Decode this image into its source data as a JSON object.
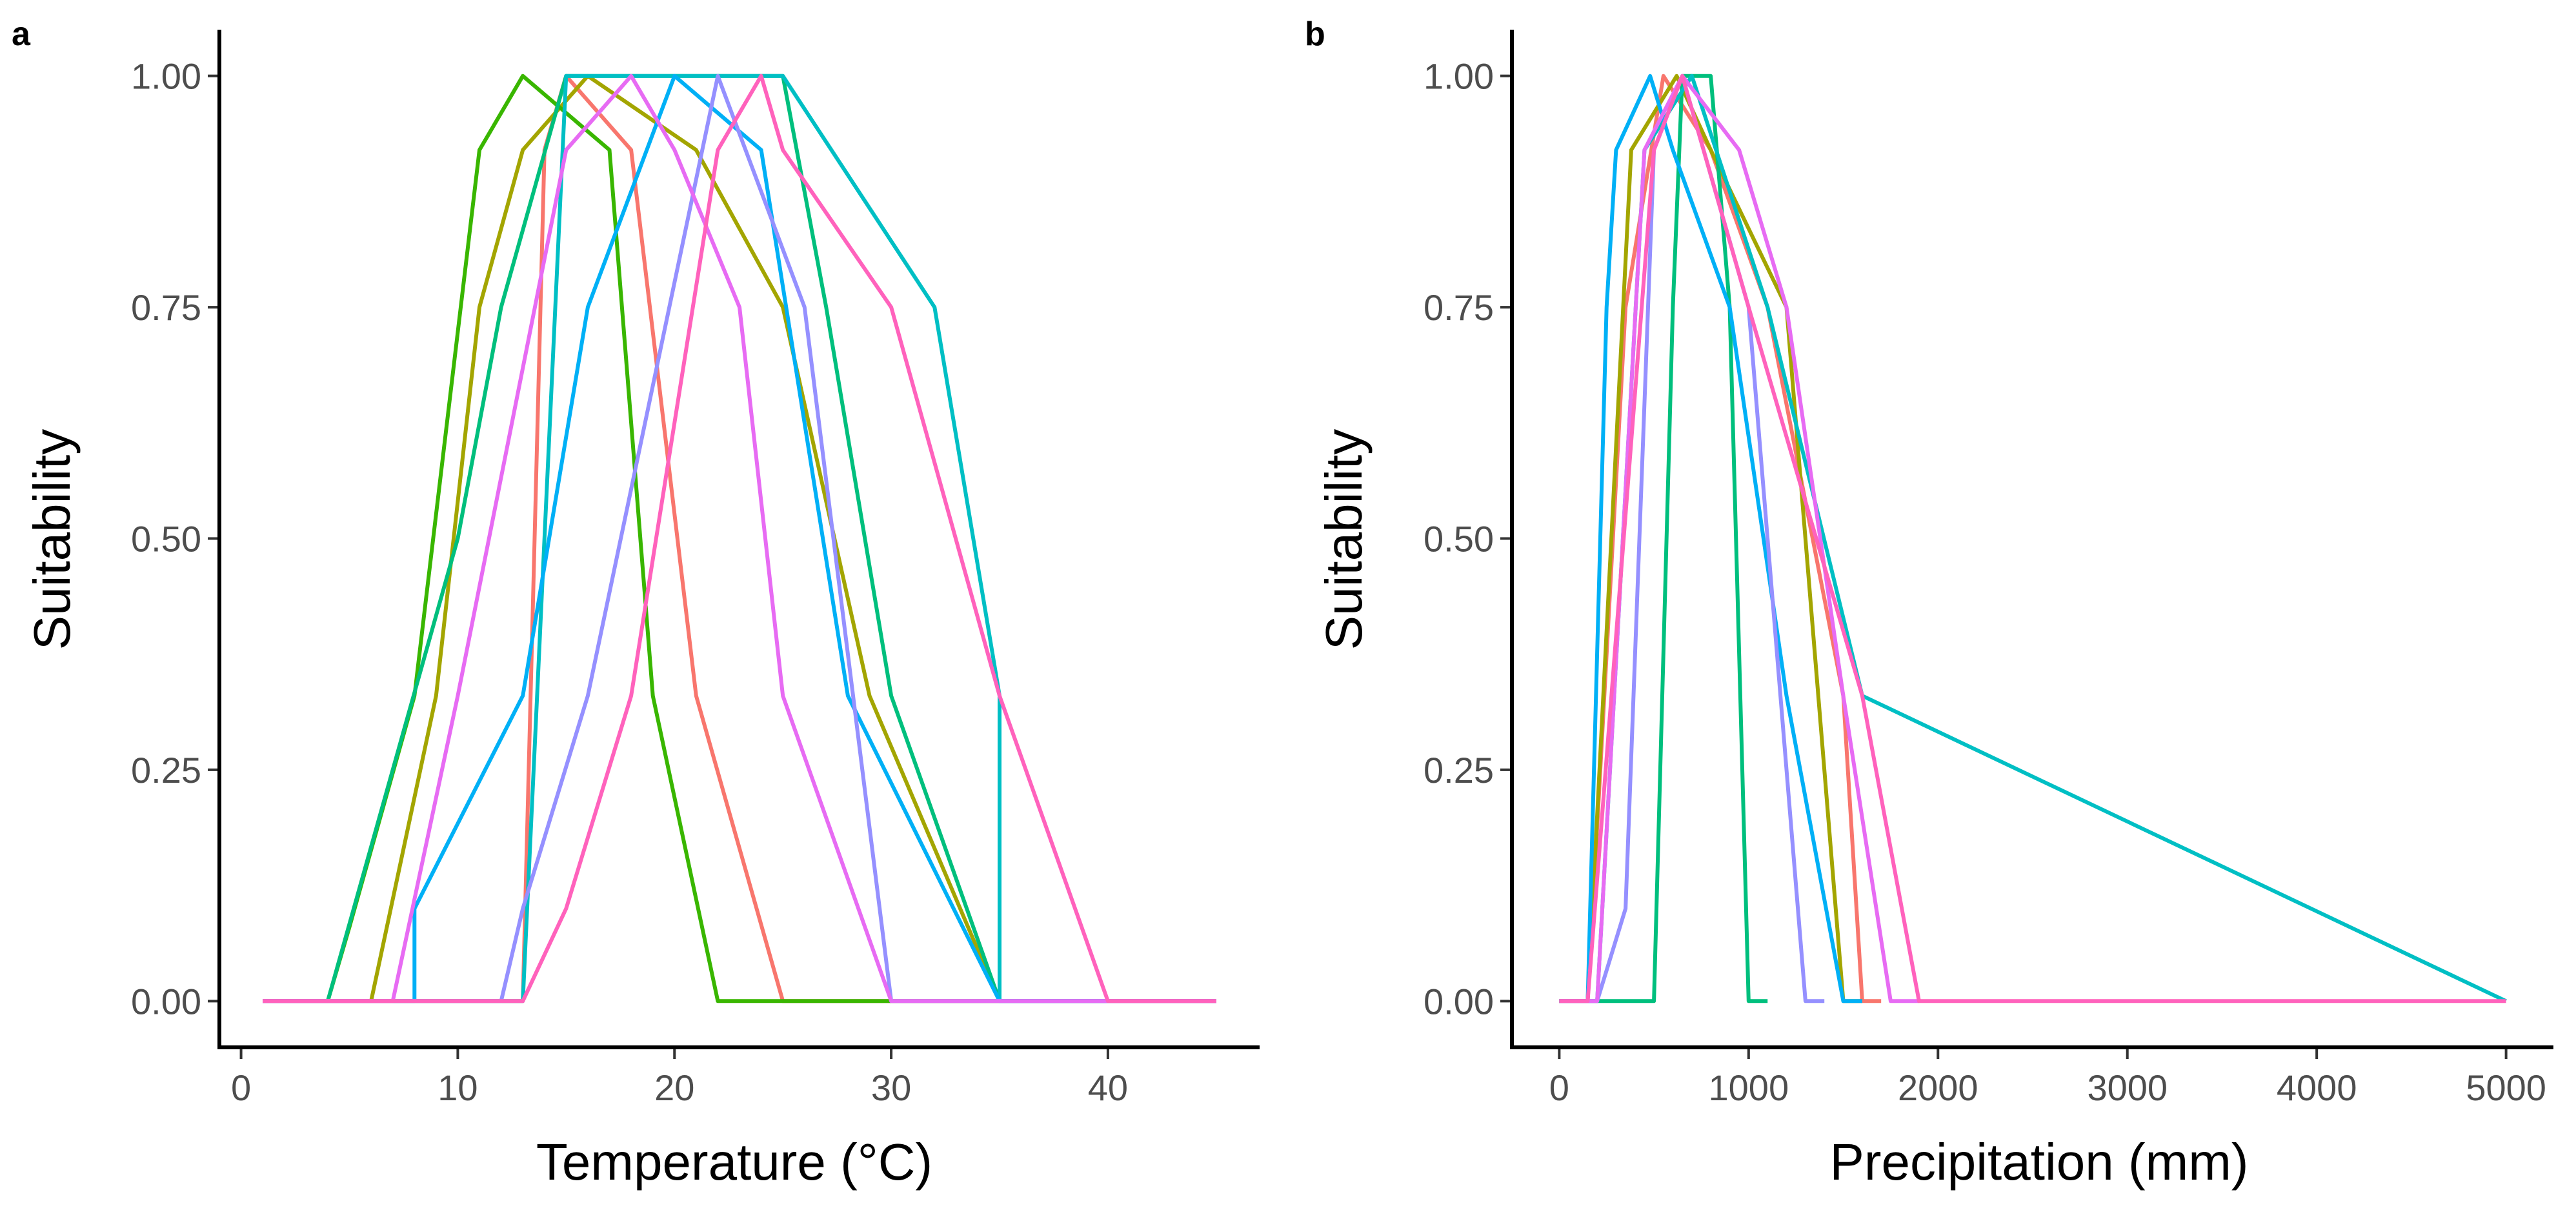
{
  "chart_data": [
    {
      "type": "line",
      "panel_label": "a",
      "xlabel": "Temperature (°C)",
      "ylabel": "Suitability",
      "xlim": [
        -1,
        47
      ],
      "ylim": [
        -0.05,
        1.05
      ],
      "x_ticks": [
        0,
        10,
        20,
        30,
        40
      ],
      "y_ticks": [
        0,
        0.25,
        0.5,
        0.75,
        1
      ],
      "x_tick_labels": [
        "0",
        "10",
        "20",
        "30",
        "40"
      ],
      "y_tick_labels": [
        "0.00",
        "0.25",
        "0.50",
        "0.75",
        "1.00"
      ],
      "grid": false,
      "legend": "none",
      "series": [
        {
          "color": "#F8766D",
          "points": [
            [
              1,
              0
            ],
            [
              13,
              0
            ],
            [
              14,
              0.92
            ],
            [
              15,
              1
            ],
            [
              18,
              0.92
            ],
            [
              21,
              0.33
            ],
            [
              25,
              0
            ],
            [
              45,
              0
            ]
          ]
        },
        {
          "color": "#A3A500",
          "points": [
            [
              1,
              0
            ],
            [
              6,
              0
            ],
            [
              9,
              0.33
            ],
            [
              11,
              0.75
            ],
            [
              13,
              0.92
            ],
            [
              16,
              1
            ],
            [
              21,
              0.92
            ],
            [
              25,
              0.75
            ],
            [
              29,
              0.33
            ],
            [
              35,
              0
            ],
            [
              45,
              0
            ]
          ]
        },
        {
          "color": "#39B600",
          "points": [
            [
              1,
              0
            ],
            [
              4,
              0
            ],
            [
              5,
              0.08
            ],
            [
              8,
              0.33
            ],
            [
              11,
              0.92
            ],
            [
              13,
              1
            ],
            [
              17,
              0.92
            ],
            [
              19,
              0.33
            ],
            [
              22,
              0
            ],
            [
              30,
              0
            ],
            [
              45,
              0
            ]
          ]
        },
        {
          "color": "#00BF7D",
          "points": [
            [
              1,
              0
            ],
            [
              4,
              0
            ],
            [
              10,
              0.5
            ],
            [
              12,
              0.75
            ],
            [
              15,
              1
            ],
            [
              25,
              1
            ],
            [
              27,
              0.75
            ],
            [
              30,
              0.33
            ],
            [
              35,
              0
            ],
            [
              45,
              0
            ]
          ]
        },
        {
          "color": "#00BFC4",
          "points": [
            [
              1,
              0
            ],
            [
              13,
              0
            ],
            [
              15,
              1
            ],
            [
              20,
              1
            ],
            [
              25,
              1
            ],
            [
              32,
              0.75
            ],
            [
              35,
              0.33
            ],
            [
              35,
              0
            ],
            [
              45,
              0
            ]
          ]
        },
        {
          "color": "#00B0F6",
          "points": [
            [
              1,
              0
            ],
            [
              8,
              0
            ],
            [
              8,
              0.1
            ],
            [
              13,
              0.33
            ],
            [
              16,
              0.75
            ],
            [
              20,
              1
            ],
            [
              24,
              0.92
            ],
            [
              28,
              0.33
            ],
            [
              35,
              0
            ],
            [
              45,
              0
            ]
          ]
        },
        {
          "color": "#9590FF",
          "points": [
            [
              1,
              0
            ],
            [
              12,
              0
            ],
            [
              13,
              0.1
            ],
            [
              16,
              0.33
            ],
            [
              22,
              1
            ],
            [
              26,
              0.75
            ],
            [
              30,
              0
            ],
            [
              45,
              0
            ]
          ]
        },
        {
          "color": "#E76BF3",
          "points": [
            [
              1,
              0
            ],
            [
              7,
              0
            ],
            [
              10,
              0.33
            ],
            [
              15,
              0.92
            ],
            [
              18,
              1
            ],
            [
              20,
              0.92
            ],
            [
              23,
              0.75
            ],
            [
              25,
              0.33
            ],
            [
              30,
              0
            ],
            [
              45,
              0
            ]
          ]
        },
        {
          "color": "#FF62BC",
          "points": [
            [
              1,
              0
            ],
            [
              13,
              0
            ],
            [
              15,
              0.1
            ],
            [
              18,
              0.33
            ],
            [
              22,
              0.92
            ],
            [
              24,
              1
            ],
            [
              25,
              0.92
            ],
            [
              30,
              0.75
            ],
            [
              35,
              0.33
            ],
            [
              40,
              0
            ],
            [
              45,
              0
            ]
          ]
        }
      ]
    },
    {
      "type": "line",
      "panel_label": "b",
      "xlabel": "Precipitation (mm)",
      "ylabel": "Suitability",
      "xlim": [
        -250,
        5250
      ],
      "ylim": [
        -0.05,
        1.05
      ],
      "x_ticks": [
        0,
        1000,
        2000,
        3000,
        4000,
        5000
      ],
      "y_ticks": [
        0,
        0.25,
        0.5,
        0.75,
        1
      ],
      "x_tick_labels": [
        "0",
        "1000",
        "2000",
        "3000",
        "4000",
        "5000"
      ],
      "y_tick_labels": [
        "0.00",
        "0.25",
        "0.50",
        "0.75",
        "1.00"
      ],
      "grid": false,
      "legend": "none",
      "series": [
        {
          "color": "#F8766D",
          "points": [
            [
              0,
              0
            ],
            [
              150,
              0
            ],
            [
              350,
              0.75
            ],
            [
              550,
              1
            ],
            [
              800,
              0.92
            ],
            [
              1100,
              0.75
            ],
            [
              1500,
              0.33
            ],
            [
              1600,
              0
            ],
            [
              1700,
              0
            ]
          ]
        },
        {
          "color": "#A3A500",
          "points": [
            [
              0,
              0
            ],
            [
              150,
              0
            ],
            [
              380,
              0.92
            ],
            [
              620,
              1
            ],
            [
              800,
              0.92
            ],
            [
              1200,
              0.75
            ],
            [
              1500,
              0
            ],
            [
              1600,
              0
            ]
          ]
        },
        {
          "color": "#00BF7D",
          "points": [
            [
              0,
              0
            ],
            [
              200,
              0
            ],
            [
              500,
              0
            ],
            [
              600,
              0.75
            ],
            [
              650,
              1
            ],
            [
              800,
              1
            ],
            [
              900,
              0.75
            ],
            [
              1000,
              0
            ],
            [
              1100,
              0
            ]
          ]
        },
        {
          "color": "#00BFC4",
          "points": [
            [
              0,
              0
            ],
            [
              200,
              0
            ],
            [
              450,
              0.92
            ],
            [
              700,
              1
            ],
            [
              1100,
              0.75
            ],
            [
              1600,
              0.33
            ],
            [
              5000,
              0
            ]
          ]
        },
        {
          "color": "#00B0F6",
          "points": [
            [
              0,
              0
            ],
            [
              150,
              0
            ],
            [
              250,
              0.75
            ],
            [
              300,
              0.92
            ],
            [
              480,
              1
            ],
            [
              600,
              0.92
            ],
            [
              900,
              0.75
            ],
            [
              1200,
              0.33
            ],
            [
              1500,
              0
            ],
            [
              1600,
              0
            ]
          ]
        },
        {
          "color": "#9590FF",
          "points": [
            [
              0,
              0
            ],
            [
              200,
              0
            ],
            [
              350,
              0.1
            ],
            [
              500,
              0.92
            ],
            [
              650,
              1
            ],
            [
              1000,
              0.75
            ],
            [
              1300,
              0
            ],
            [
              1400,
              0
            ]
          ]
        },
        {
          "color": "#E76BF3",
          "points": [
            [
              0,
              0
            ],
            [
              200,
              0
            ],
            [
              450,
              0.92
            ],
            [
              650,
              1
            ],
            [
              950,
              0.92
            ],
            [
              1200,
              0.75
            ],
            [
              1500,
              0.33
            ],
            [
              1750,
              0
            ],
            [
              1900,
              0
            ]
          ]
        },
        {
          "color": "#FF62BC",
          "points": [
            [
              0,
              0
            ],
            [
              150,
              0
            ],
            [
              500,
              0.92
            ],
            [
              650,
              1
            ],
            [
              1000,
              0.75
            ],
            [
              1600,
              0.33
            ],
            [
              1900,
              0
            ],
            [
              5000,
              0
            ]
          ]
        }
      ]
    }
  ]
}
